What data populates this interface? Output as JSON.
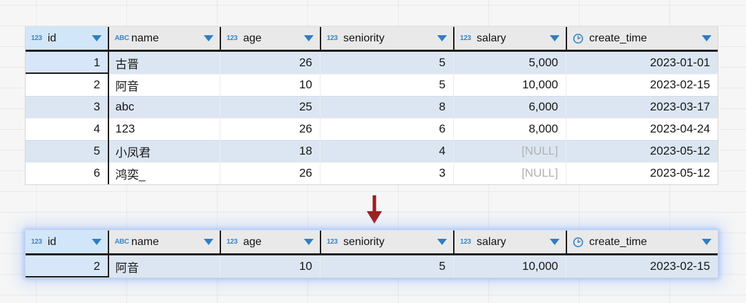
{
  "null_text": "[NULL]",
  "colors": {
    "bg": "#f6f6f6",
    "grid_line": "rgba(0,0,0,0.05)",
    "header_gray": "#e9e9e9",
    "header_selected_blue": "#d2e6f9",
    "row_stripe_blue": "#dce6f2",
    "row_white": "#ffffff",
    "selected_cell_blue": "#d7e7f9",
    "border_dark": "#1c1c1c",
    "cell_separator": "#e9edf2",
    "type_icon_blue": "#3a86c9",
    "triangle_blue": "#2e7ec5",
    "null_gray": "#b1b1b1",
    "text_color": "#161616",
    "arrow_red": "#9e1c1f"
  },
  "columns": [
    {
      "key": "id",
      "label": "id",
      "type_icon": "123",
      "icon_name": "number-type-icon",
      "align": "right"
    },
    {
      "key": "name",
      "label": "name",
      "type_icon": "ABC",
      "icon_name": "text-type-icon",
      "align": "left"
    },
    {
      "key": "age",
      "label": "age",
      "type_icon": "123",
      "icon_name": "number-type-icon",
      "align": "right"
    },
    {
      "key": "seniority",
      "label": "seniority",
      "type_icon": "123",
      "icon_name": "number-type-icon",
      "align": "right"
    },
    {
      "key": "salary",
      "label": "salary",
      "type_icon": "123",
      "icon_name": "number-type-icon",
      "align": "right"
    },
    {
      "key": "create_time",
      "label": "create_time",
      "type_icon": "clock",
      "icon_name": "clock-icon",
      "align": "right"
    }
  ],
  "original_table": {
    "selected_cell": {
      "row": 0,
      "column": "id"
    },
    "rows": [
      {
        "id": "1",
        "name": "古晋",
        "age": "26",
        "seniority": "5",
        "salary": "5,000",
        "create_time": "2023-01-01"
      },
      {
        "id": "2",
        "name": "阿音",
        "age": "10",
        "seniority": "5",
        "salary": "10,000",
        "create_time": "2023-02-15"
      },
      {
        "id": "3",
        "name": "abc",
        "age": "25",
        "seniority": "8",
        "salary": "6,000",
        "create_time": "2023-03-17"
      },
      {
        "id": "4",
        "name": "123",
        "age": "26",
        "seniority": "6",
        "salary": "8,000",
        "create_time": "2023-04-24"
      },
      {
        "id": "5",
        "name": "小凤君",
        "age": "18",
        "seniority": "4",
        "salary": "[NULL]",
        "create_time": "2023-05-12"
      },
      {
        "id": "6",
        "name": "鸿奕_",
        "age": "26",
        "seniority": "3",
        "salary": "[NULL]",
        "create_time": "2023-05-12"
      }
    ]
  },
  "filtered_table": {
    "selected_cell": {
      "row": 0,
      "column": "id"
    },
    "rows": [
      {
        "id": "2",
        "name": "阿音",
        "age": "10",
        "seniority": "5",
        "salary": "10,000",
        "create_time": "2023-02-15"
      }
    ]
  }
}
